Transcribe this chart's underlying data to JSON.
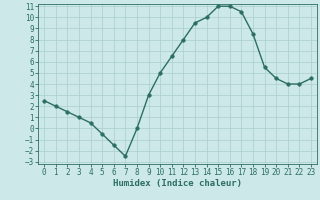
{
  "x": [
    0,
    1,
    2,
    3,
    4,
    5,
    6,
    7,
    8,
    9,
    10,
    11,
    12,
    13,
    14,
    15,
    16,
    17,
    18,
    19,
    20,
    21,
    22,
    23
  ],
  "y": [
    2.5,
    2.0,
    1.5,
    1.0,
    0.5,
    -0.5,
    -1.5,
    -2.5,
    0.0,
    3.0,
    5.0,
    6.5,
    8.0,
    9.5,
    10.0,
    11.0,
    11.0,
    10.5,
    8.5,
    5.5,
    4.5,
    4.0,
    4.0,
    4.5
  ],
  "xlabel": "Humidex (Indice chaleur)",
  "bg_color": "#cce8e8",
  "line_color": "#2d6e62",
  "marker_color": "#2d6e62",
  "grid_color": "#aacece",
  "ylim": [
    -3,
    11
  ],
  "xlim": [
    -0.5,
    23.5
  ],
  "yticks": [
    -3,
    -2,
    -1,
    0,
    1,
    2,
    3,
    4,
    5,
    6,
    7,
    8,
    9,
    10,
    11
  ],
  "xticks": [
    0,
    1,
    2,
    3,
    4,
    5,
    6,
    7,
    8,
    9,
    10,
    11,
    12,
    13,
    14,
    15,
    16,
    17,
    18,
    19,
    20,
    21,
    22,
    23
  ],
  "tick_fontsize": 5.5,
  "xlabel_fontsize": 6.5,
  "line_width": 1.0,
  "marker_size": 2.5
}
